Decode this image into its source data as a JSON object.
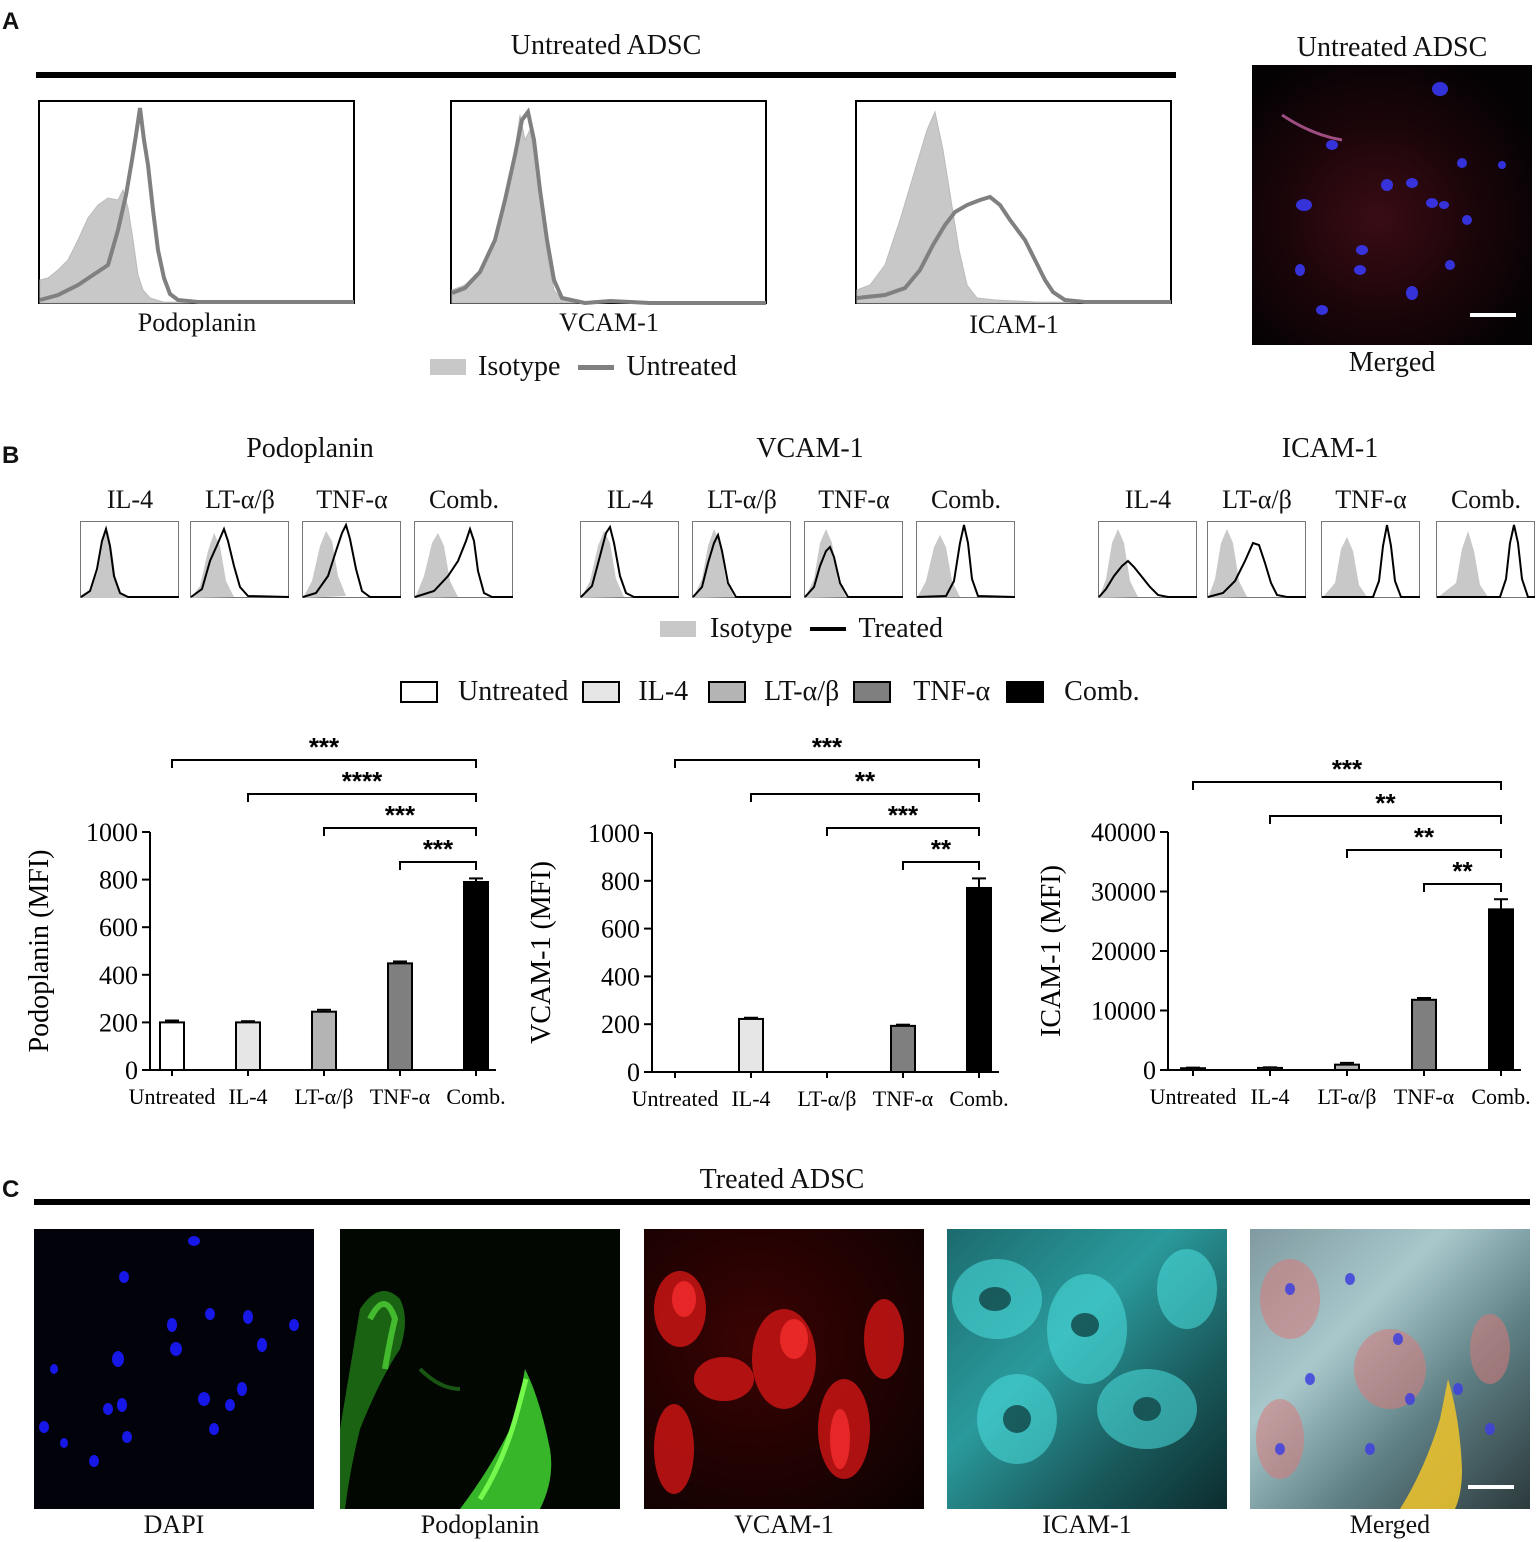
{
  "panels": {
    "A": {
      "label": "A",
      "title": "Untreated ADSC",
      "histograms": [
        "Podoplanin",
        "VCAM-1",
        "ICAM-1"
      ],
      "legend": {
        "isotype": "Isotype",
        "untreated": "Untreated"
      },
      "image_title": "Untreated ADSC",
      "image_caption": "Merged"
    },
    "B": {
      "label": "B",
      "markers": [
        {
          "name": "Podoplanin",
          "treatments": [
            "IL-4",
            "LT-α/β",
            "TNF-α",
            "Comb."
          ]
        },
        {
          "name": "VCAM-1",
          "treatments": [
            "IL-4",
            "LT-α/β",
            "TNF-α",
            "Comb."
          ]
        },
        {
          "name": "ICAM-1",
          "treatments": [
            "IL-4",
            "LT-α/β",
            "TNF-α",
            "Comb."
          ]
        }
      ],
      "hist_legend": {
        "isotype": "Isotype",
        "treated": "Treated"
      },
      "bar_legend": [
        "Untreated",
        "IL-4",
        "LT-α/β",
        "TNF-α",
        "Comb."
      ]
    },
    "C": {
      "label": "C",
      "title": "Treated ADSC",
      "images": [
        "DAPI",
        "Podoplanin",
        "VCAM-1",
        "ICAM-1",
        "Merged"
      ]
    }
  },
  "colors": {
    "untreated": "#ffffff",
    "il4": "#e6e6e6",
    "lt": "#b4b4b4",
    "tnf": "#7f7f7f",
    "comb": "#000000",
    "isotype": "#c8c8c8",
    "untreated_line": "#808080",
    "treated_line": "#000000"
  },
  "chart_data": [
    {
      "type": "bar",
      "categories": [
        "Untreated",
        "IL-4",
        "LT-α/β",
        "TNF-α",
        "Comb."
      ],
      "values": [
        200,
        200,
        245,
        448,
        790
      ],
      "errors": [
        8,
        5,
        8,
        8,
        15
      ],
      "ylabel": "Podoplanin (MFI)",
      "ylim": [
        0,
        1000
      ],
      "yticks": [
        "0",
        "200",
        "400",
        "600",
        "800",
        "1000"
      ],
      "significance": [
        {
          "from": "Untreated",
          "to": "Comb.",
          "label": "***"
        },
        {
          "from": "IL-4",
          "to": "Comb.",
          "label": "****"
        },
        {
          "from": "LT-α/β",
          "to": "Comb.",
          "label": "***"
        },
        {
          "from": "TNF-α",
          "to": "Comb.",
          "label": "***"
        }
      ]
    },
    {
      "type": "bar",
      "categories": [
        "Untreated",
        "IL-4",
        "LT-α/β",
        "TNF-α",
        "Comb."
      ],
      "values": [
        0,
        222,
        0,
        193,
        770
      ],
      "errors": [
        0,
        5,
        0,
        5,
        40
      ],
      "ylabel": "VCAM-1 (MFI)",
      "ylim": [
        0,
        1000
      ],
      "yticks": [
        "0",
        "200",
        "400",
        "600",
        "800",
        "1000"
      ],
      "significance": [
        {
          "from": "Untreated",
          "to": "Comb.",
          "label": "***"
        },
        {
          "from": "IL-4",
          "to": "Comb.",
          "label": "**"
        },
        {
          "from": "LT-α/β",
          "to": "Comb.",
          "label": "***"
        },
        {
          "from": "TNF-α",
          "to": "Comb.",
          "label": "**"
        }
      ]
    },
    {
      "type": "bar",
      "categories": [
        "Untreated",
        "IL-4",
        "LT-α/β",
        "TNF-α",
        "Comb."
      ],
      "values": [
        300,
        350,
        900,
        11800,
        27000
      ],
      "errors": [
        100,
        100,
        300,
        300,
        1700
      ],
      "ylabel": "ICAM-1 (MFI)",
      "ylim": [
        0,
        40000
      ],
      "yticks": [
        "0",
        "10000",
        "20000",
        "30000",
        "40000"
      ],
      "significance": [
        {
          "from": "Untreated",
          "to": "Comb.",
          "label": "***"
        },
        {
          "from": "IL-4",
          "to": "Comb.",
          "label": "**"
        },
        {
          "from": "LT-α/β",
          "to": "Comb.",
          "label": "**"
        },
        {
          "from": "TNF-α",
          "to": "Comb.",
          "label": "**"
        }
      ]
    }
  ]
}
